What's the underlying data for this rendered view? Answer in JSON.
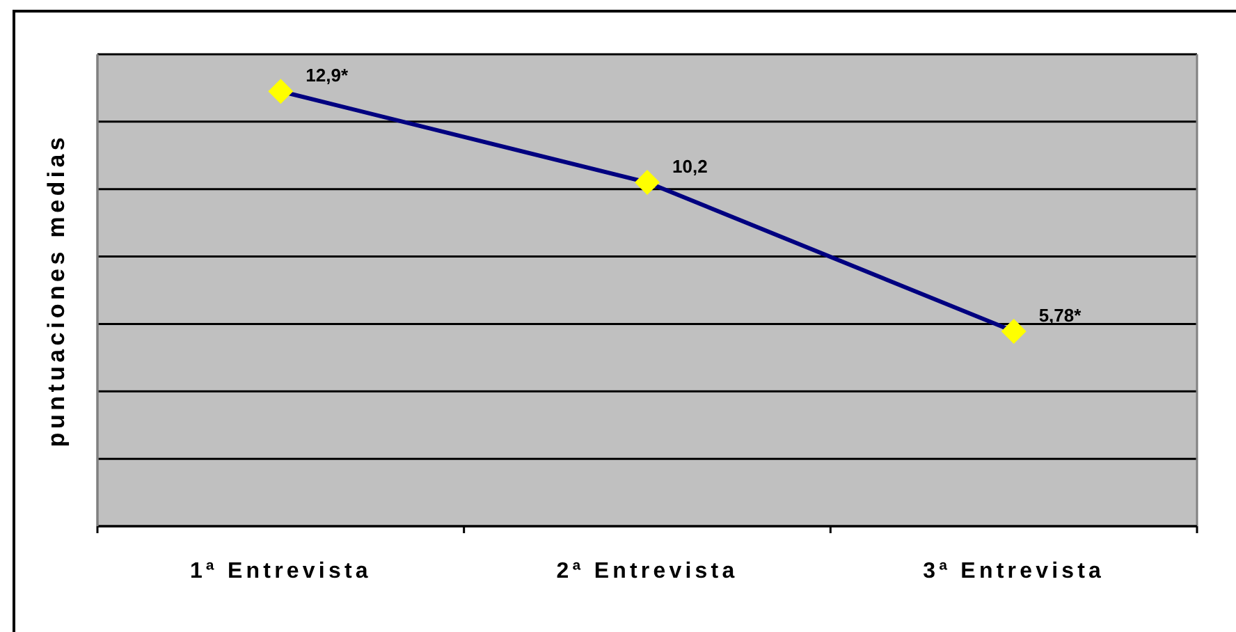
{
  "chart_data": {
    "type": "line",
    "ylabel": "puntuaciones medias",
    "categories": [
      "1ª Entrevista",
      "2ª Entrevista",
      "3ª Entrevista"
    ],
    "series": [
      {
        "color": "#000080",
        "colors": [
          "#ffff00",
          "#ffff00",
          "#ffff00"
        ],
        "values": [
          12.9,
          10.2,
          5.78
        ],
        "value_labels": [
          "12,9*",
          "10,2",
          "5,78*"
        ]
      }
    ],
    "marker": "diamond",
    "line_style": "solid",
    "ylim": [
      0,
      14
    ],
    "yticks": [
      {
        "value": 0,
        "label": null
      },
      {
        "value": 2,
        "label": null
      },
      {
        "value": 4,
        "label": null
      },
      {
        "value": 6,
        "label": null
      },
      {
        "value": 8,
        "label": null
      },
      {
        "value": 10,
        "label": null
      },
      {
        "value": 12,
        "label": null
      },
      {
        "value": 14,
        "label": null
      }
    ],
    "grid": "y",
    "tick_labels": "x"
  }
}
